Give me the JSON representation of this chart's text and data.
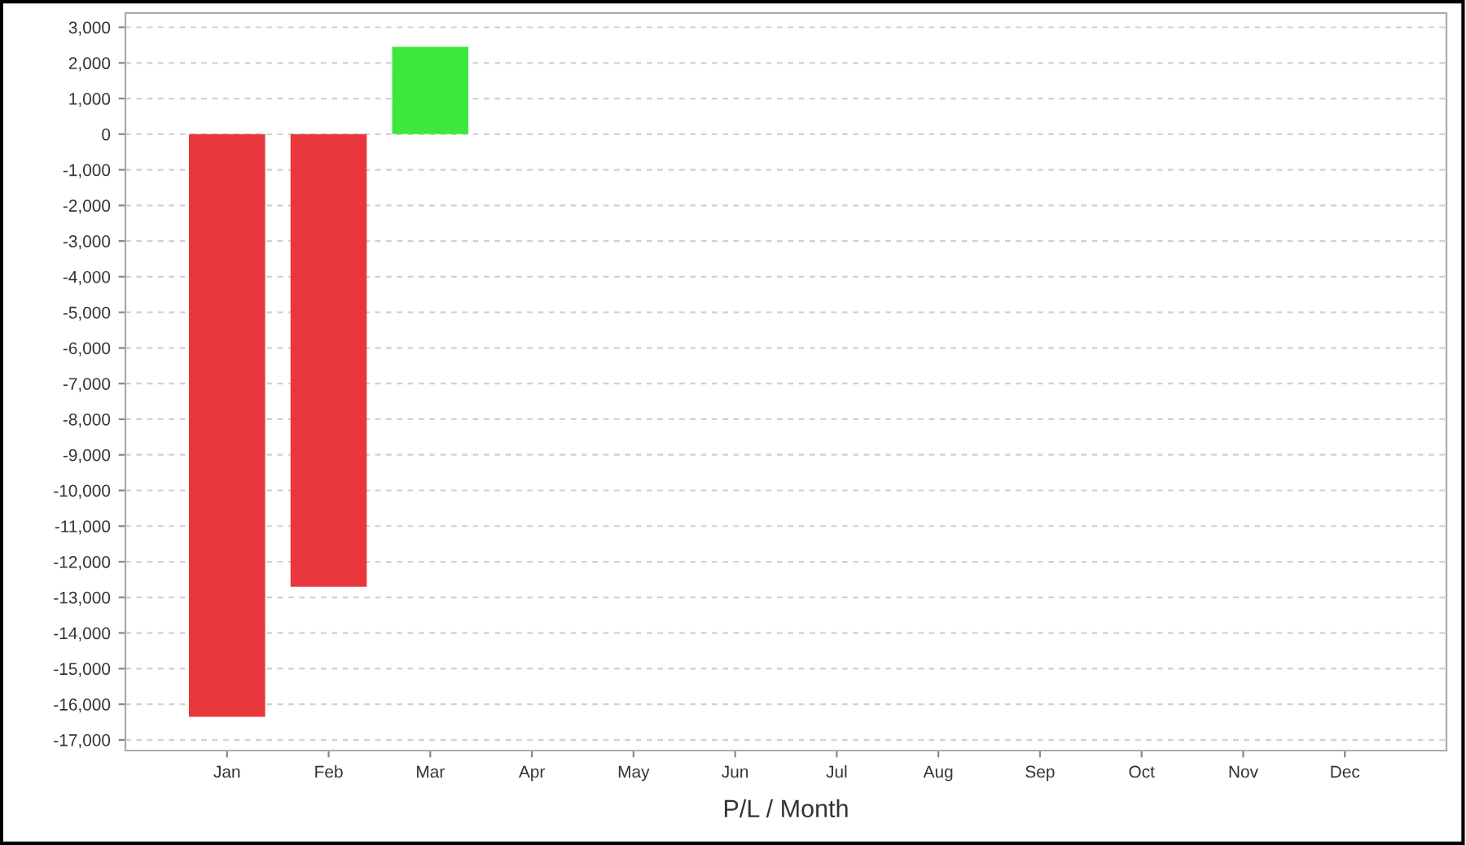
{
  "chart_data": {
    "type": "bar",
    "xlabel": "P/L / Month",
    "categories": [
      "Jan",
      "Feb",
      "Mar",
      "Apr",
      "May",
      "Jun",
      "Jul",
      "Aug",
      "Sep",
      "Oct",
      "Nov",
      "Dec"
    ],
    "values": [
      -16350,
      -12700,
      2450,
      null,
      null,
      null,
      null,
      null,
      null,
      null,
      null,
      null
    ],
    "colors": [
      "#e8373c",
      "#e8373c",
      "#3ce83c",
      null,
      null,
      null,
      null,
      null,
      null,
      null,
      null,
      null
    ],
    "ylim": [
      -17300,
      3400
    ],
    "yticks": [
      {
        "value": 3000,
        "label": "3,000"
      },
      {
        "value": 2000,
        "label": "2,000"
      },
      {
        "value": 1000,
        "label": "1,000"
      },
      0,
      {
        "value": -1000,
        "label": "-1,000"
      },
      {
        "value": -2000,
        "label": "-2,000"
      },
      {
        "value": -3000,
        "label": "-3,000"
      },
      {
        "value": -4000,
        "label": "-4,000"
      },
      {
        "value": -5000,
        "label": "-5,000"
      },
      {
        "value": -6000,
        "label": "-6,000"
      },
      {
        "value": -7000,
        "label": "-7,000"
      },
      {
        "value": -8000,
        "label": "-8,000"
      },
      {
        "value": -9000,
        "label": "-9,000"
      },
      {
        "value": -10000,
        "label": "-10,000"
      },
      {
        "value": -11000,
        "label": "-11,000"
      },
      {
        "value": -12000,
        "label": "-12,000"
      },
      {
        "value": -13000,
        "label": "-13,000"
      },
      {
        "value": -14000,
        "label": "-14,000"
      },
      {
        "value": -15000,
        "label": "-15,000"
      },
      {
        "value": -16000,
        "label": "-16,000"
      },
      {
        "value": -17000,
        "label": "-17,000"
      }
    ],
    "grid": "y"
  }
}
